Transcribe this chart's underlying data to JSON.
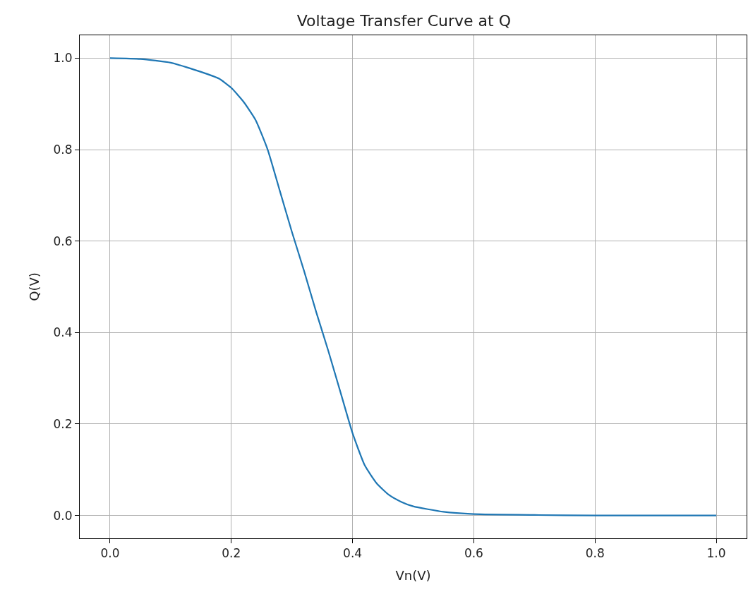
{
  "chart_data": {
    "type": "line",
    "title": "Voltage Transfer Curve at Q",
    "xlabel": "Vn(V)",
    "ylabel": "Q(V)",
    "x": [
      0,
      0.05,
      0.1,
      0.15,
      0.18,
      0.2,
      0.22,
      0.24,
      0.26,
      0.28,
      0.3,
      0.32,
      0.34,
      0.36,
      0.38,
      0.4,
      0.42,
      0.44,
      0.46,
      0.48,
      0.5,
      0.55,
      0.6,
      0.7,
      0.8,
      0.9,
      1.0
    ],
    "series": [
      {
        "color": "#1f77b4",
        "values": [
          1.0,
          0.998,
          0.99,
          0.97,
          0.955,
          0.935,
          0.905,
          0.865,
          0.8,
          0.71,
          0.62,
          0.535,
          0.445,
          0.36,
          0.27,
          0.18,
          0.11,
          0.07,
          0.045,
          0.03,
          0.02,
          0.008,
          0.003,
          0.001,
          0.0,
          0.0,
          0.0
        ]
      }
    ],
    "xlim": [
      -0.05,
      1.05
    ],
    "ylim": [
      -0.05,
      1.05
    ],
    "xticks": [
      {
        "value": 0,
        "label": "0.0"
      },
      0.2,
      0.4,
      0.6,
      0.8,
      {
        "value": 1,
        "label": "1.0"
      }
    ],
    "yticks": [
      {
        "value": 0,
        "label": "0.0"
      },
      0.2,
      0.4,
      0.6,
      0.8,
      {
        "value": 1,
        "label": "1.0"
      }
    ],
    "grid": true,
    "line_style": "solid",
    "marker": "none"
  }
}
